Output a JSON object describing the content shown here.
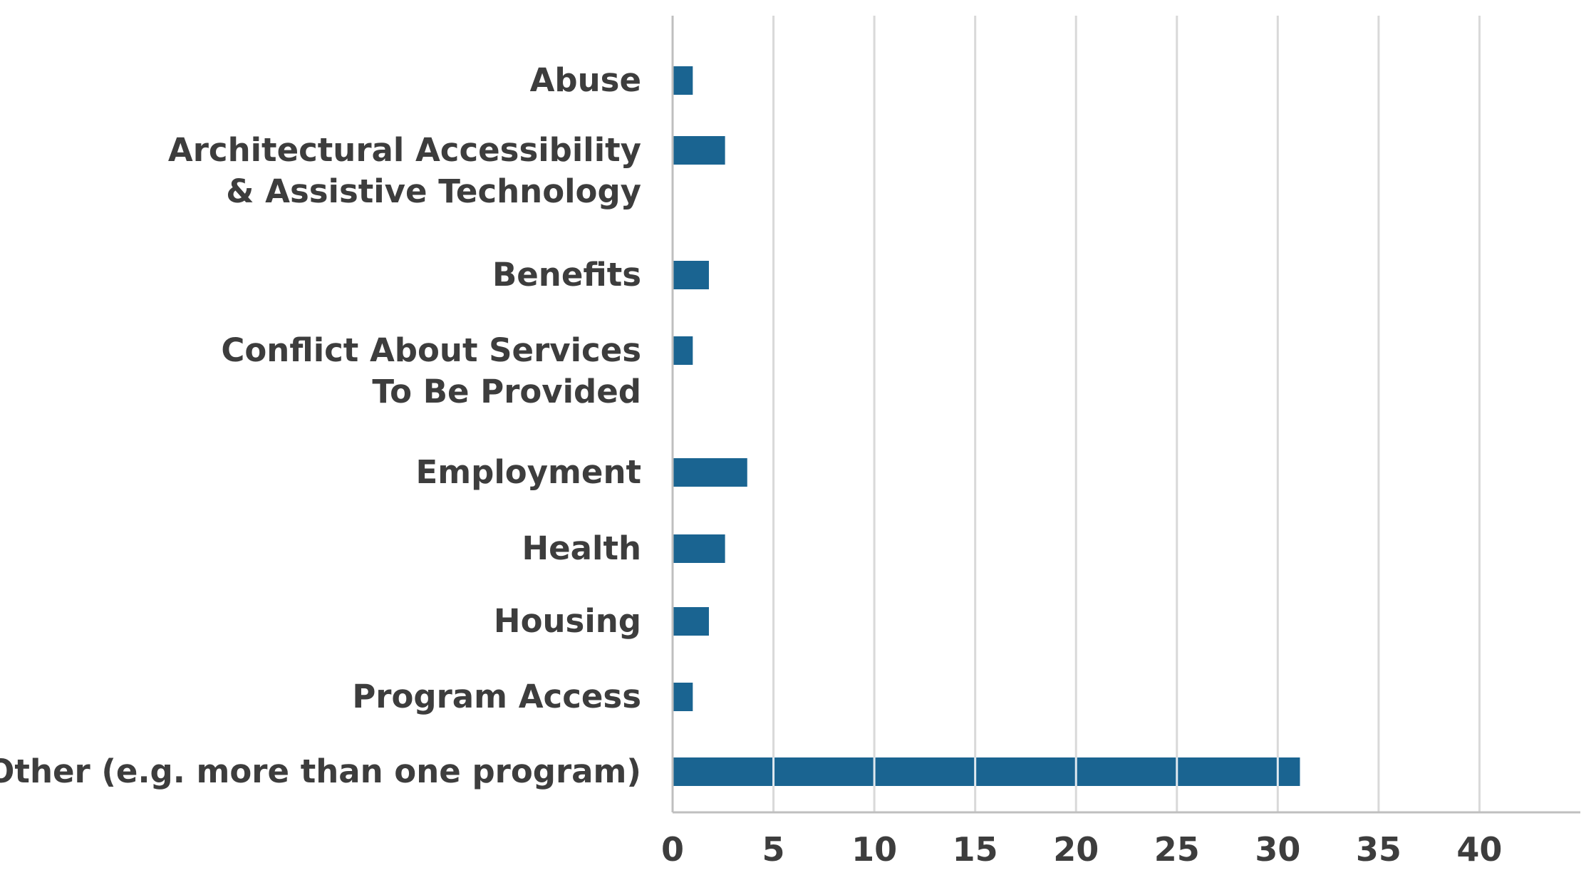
{
  "chart_data": {
    "type": "bar",
    "orientation": "horizontal",
    "title": "",
    "xlabel": "",
    "ylabel": "",
    "categories": [
      [
        "Abuse"
      ],
      [
        "Architectural Accessibility",
        "& Assistive Technology"
      ],
      [
        "Benefits"
      ],
      [
        "Conflict About Services",
        "To Be Provided"
      ],
      [
        "Employment"
      ],
      [
        "Health"
      ],
      [
        "Housing"
      ],
      [
        "Program Access"
      ],
      [
        "Other (e.g. more than one program)"
      ]
    ],
    "values": [
      1,
      2.6,
      1.8,
      1,
      3.7,
      2.6,
      1.8,
      1,
      31.1
    ],
    "xlim": [
      0,
      45
    ],
    "x_ticks": [
      "0",
      "5",
      "10",
      "15",
      "20",
      "25",
      "30",
      "35",
      "40"
    ],
    "x_tick_values": [
      0,
      5,
      10,
      15,
      20,
      25,
      30,
      35,
      40
    ],
    "grid": "vertical",
    "legend": "none",
    "bar_color": "#1a6491",
    "grid_color": "#d9d9d9",
    "axis_color": "#bfbfbf",
    "text_color": "#3d3d3d"
  }
}
